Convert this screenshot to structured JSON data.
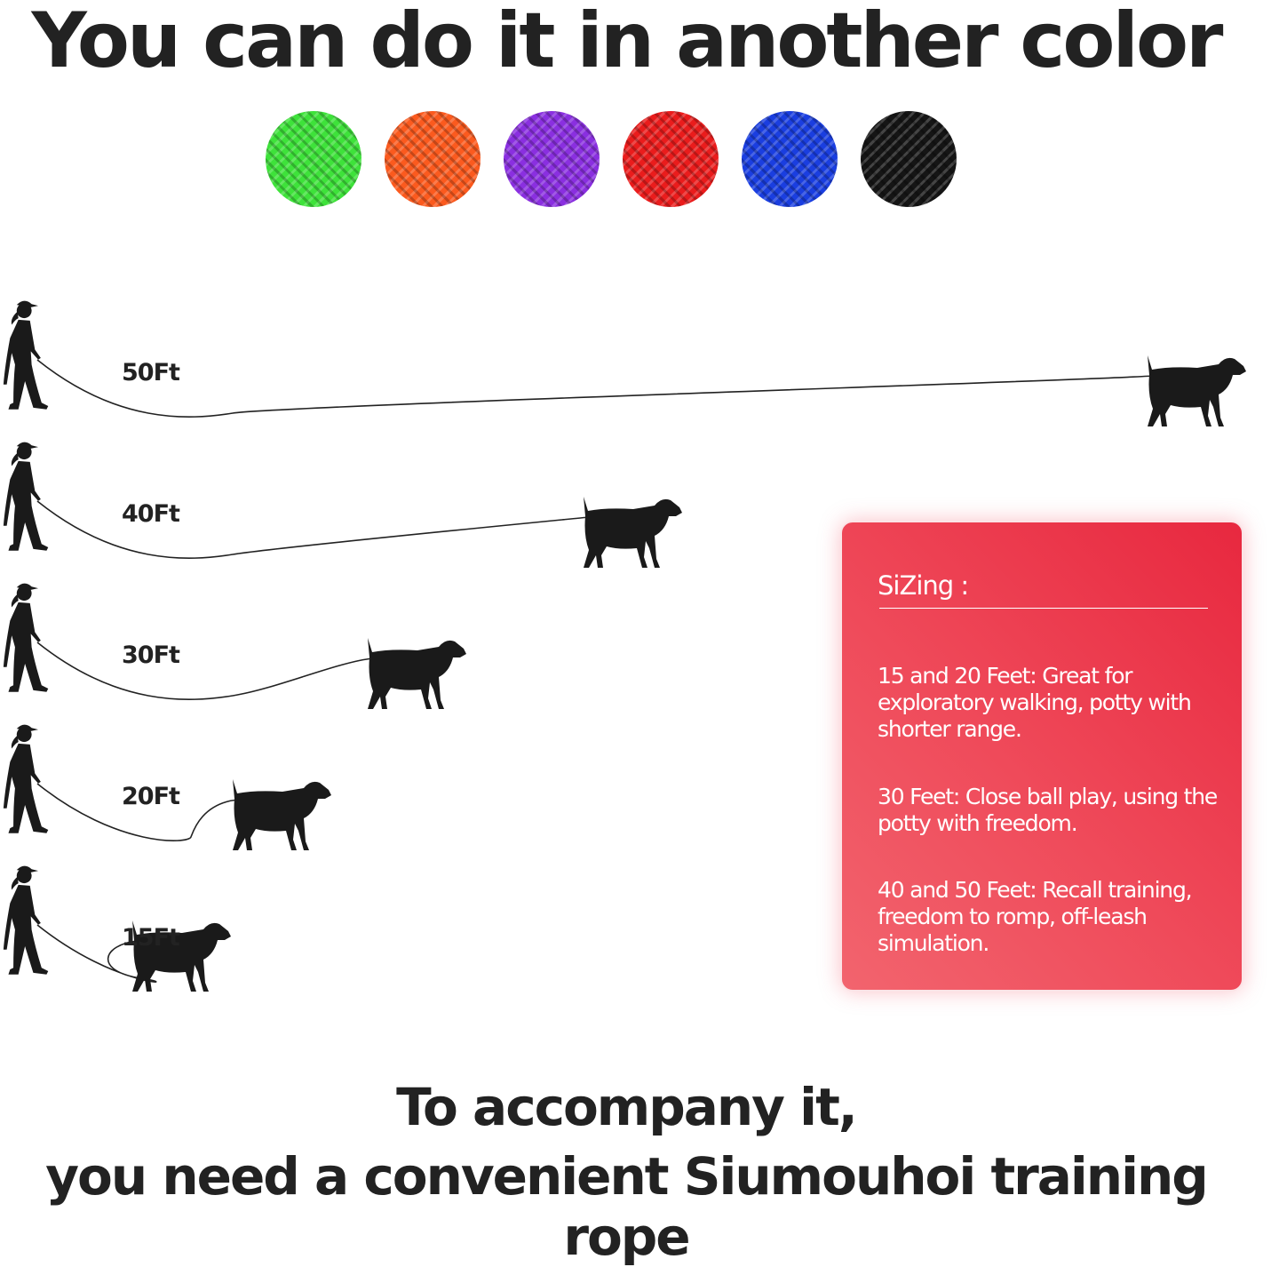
{
  "title": "You can do it in another color",
  "colors": [
    {
      "name": "green",
      "hex": "#3ee23a"
    },
    {
      "name": "orange",
      "hex": "#fb5a1e"
    },
    {
      "name": "purple",
      "hex": "#8a2fe0"
    },
    {
      "name": "red",
      "hex": "#ea1c1c"
    },
    {
      "name": "blue",
      "hex": "#1a3ee0"
    },
    {
      "name": "black",
      "hex": "#151515"
    }
  ],
  "lengths": [
    {
      "label": "50Ft",
      "feet": 50
    },
    {
      "label": "40Ft",
      "feet": 40
    },
    {
      "label": "30Ft",
      "feet": 30
    },
    {
      "label": "20Ft",
      "feet": 20
    },
    {
      "label": "15Ft",
      "feet": 15
    }
  ],
  "sizing": {
    "heading": "SiZing :",
    "items": [
      "15 and 20 Feet: Great for exploratory walking, potty with shorter range.",
      "30 Feet: Close ball play, using the potty with freedom.",
      "40 and 50 Feet: Recall training, freedom to romp, off-leash simulation."
    ]
  },
  "footer": {
    "line1": "To accompany it,",
    "line2": "you need a convenient Siumouhoi training rope"
  }
}
